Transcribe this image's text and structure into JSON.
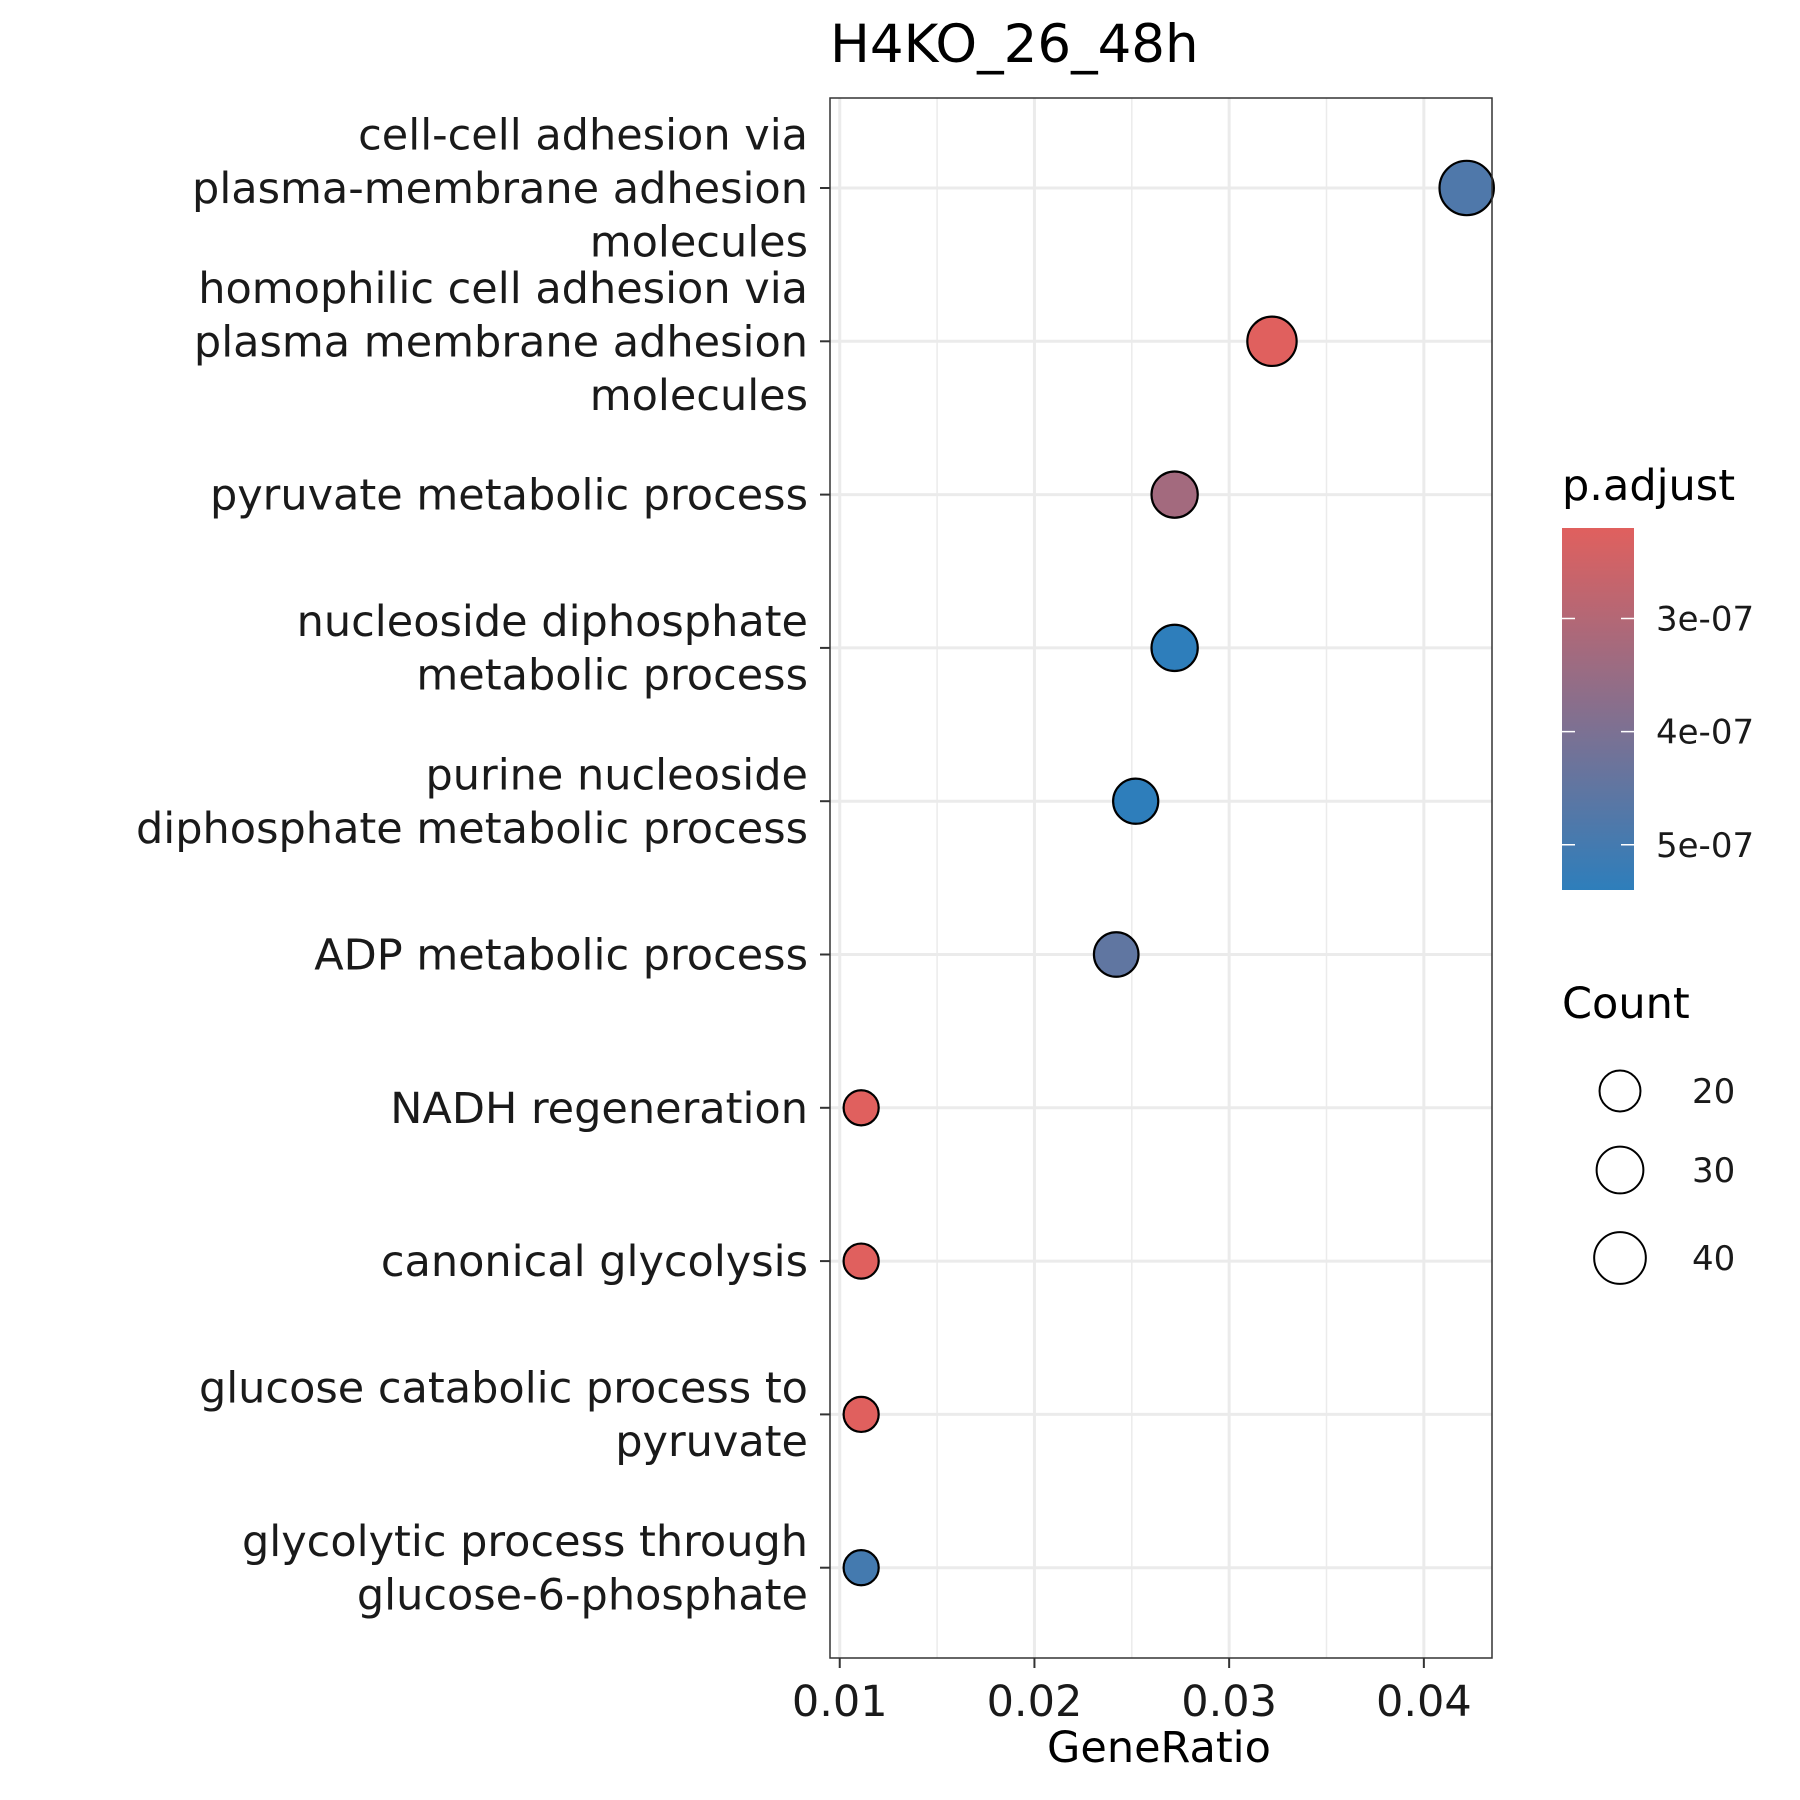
{
  "chart_data": {
    "type": "scatter",
    "title": "H4KO_26_48h",
    "xlabel": "GeneRatio",
    "ylabel": "",
    "xlim": [
      0.0095,
      0.0435
    ],
    "xticks": [
      0.01,
      0.02,
      0.03,
      0.04
    ],
    "xtick_labels": [
      "0.01",
      "0.02",
      "0.03",
      "0.04"
    ],
    "grid": true,
    "legend_position": "right",
    "categories": [
      {
        "label": [
          "cell-cell adhesion via",
          "plasma-membrane adhesion",
          "molecules"
        ],
        "x": 0.0422,
        "count": 46,
        "p_adjust": 4.8e-07
      },
      {
        "label": [
          "homophilic cell adhesion via",
          "plasma membrane adhesion",
          "molecules"
        ],
        "x": 0.0322,
        "count": 35,
        "p_adjust": 2.2e-07
      },
      {
        "label": [
          "pyruvate metabolic process"
        ],
        "x": 0.0272,
        "count": 29,
        "p_adjust": 3.3e-07
      },
      {
        "label": [
          "nucleoside diphosphate",
          "metabolic process"
        ],
        "x": 0.0272,
        "count": 29,
        "p_adjust": 5.4e-07
      },
      {
        "label": [
          "purine nucleoside",
          "diphosphate metabolic process"
        ],
        "x": 0.0252,
        "count": 27,
        "p_adjust": 5.4e-07
      },
      {
        "label": [
          "ADP metabolic process"
        ],
        "x": 0.0242,
        "count": 26,
        "p_adjust": 4.5e-07
      },
      {
        "label": [
          "NADH regeneration"
        ],
        "x": 0.0111,
        "count": 12,
        "p_adjust": 2.2e-07
      },
      {
        "label": [
          "canonical glycolysis"
        ],
        "x": 0.0111,
        "count": 12,
        "p_adjust": 2.2e-07
      },
      {
        "label": [
          "glucose catabolic process to",
          "pyruvate"
        ],
        "x": 0.0111,
        "count": 12,
        "p_adjust": 2.2e-07
      },
      {
        "label": [
          "glycolytic process through",
          "glucose-6-phosphate"
        ],
        "x": 0.0111,
        "count": 12,
        "p_adjust": 5e-07
      }
    ],
    "color_legend": {
      "title": "p.adjust",
      "min": 2.2e-07,
      "max": 5.4e-07,
      "low_color": "#E0605E",
      "high_color": "#2E7EBB",
      "ticks": [
        3e-07,
        4e-07,
        5e-07
      ],
      "tick_labels": [
        "3e-07",
        "4e-07",
        "5e-07"
      ]
    },
    "size_legend": {
      "title": "Count",
      "values": [
        20,
        30,
        40
      ],
      "labels": [
        "20",
        "30",
        "40"
      ]
    }
  }
}
